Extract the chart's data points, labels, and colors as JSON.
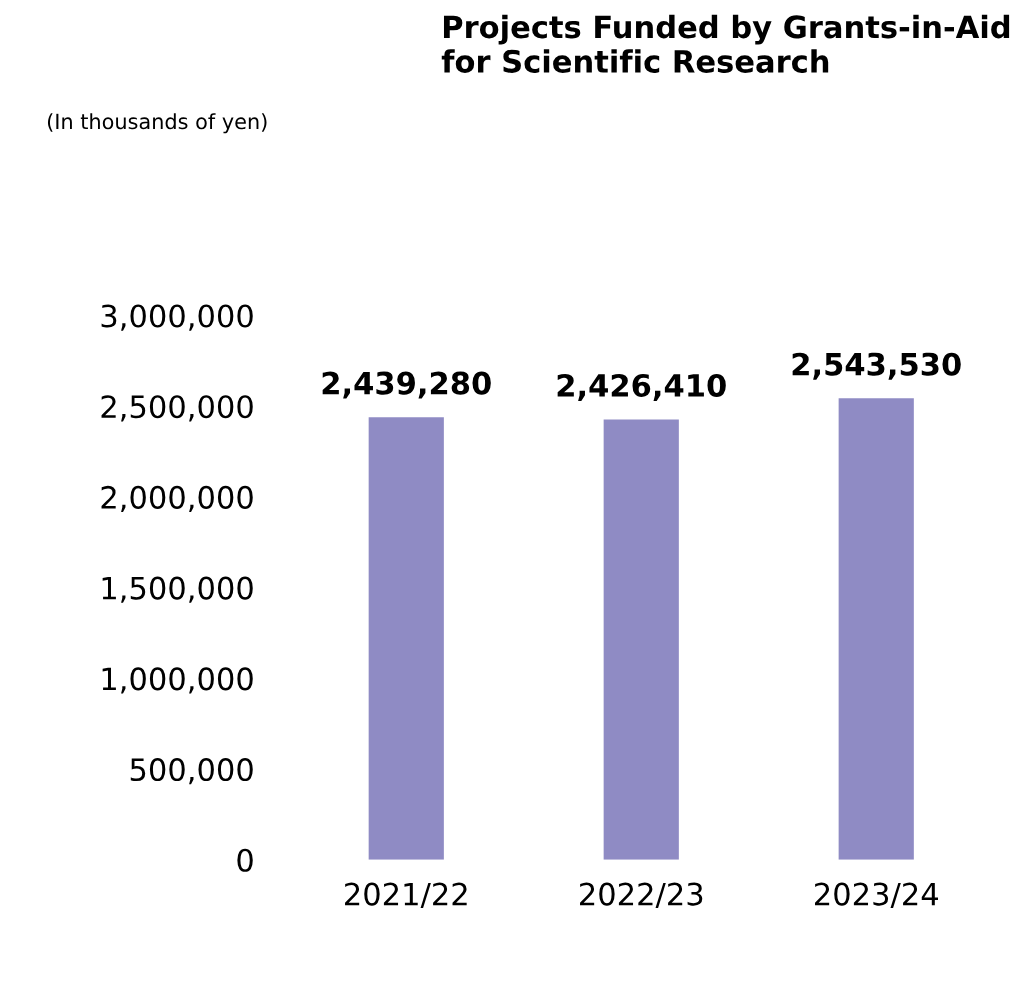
{
  "chart_data": {
    "type": "bar",
    "title": "Projects Funded by Grants-in-Aid\nfor Scientific Research",
    "annotations": [
      "(In thousands of yen)"
    ],
    "categories": [
      "2021/22",
      "2022/23",
      "2023/24"
    ],
    "values": [
      2439280,
      2426410,
      2543530
    ],
    "color": "#8f8bc4",
    "ylim": [
      0,
      3000000
    ],
    "yticks": [
      {
        "value": 0,
        "label": "0"
      },
      {
        "value": 500000,
        "label": "500,000"
      },
      {
        "value": 1000000,
        "label": "1,000,000"
      },
      {
        "value": 1500000,
        "label": "1,500,000"
      },
      {
        "value": 2000000,
        "label": "2,000,000"
      },
      {
        "value": 2500000,
        "label": "2,500,000"
      },
      {
        "value": 3000000,
        "label": "3,000,000"
      }
    ],
    "value_labels": [
      "2,439,280",
      "2,426,410",
      "2,543,530"
    ],
    "grid": false,
    "legend": false
  }
}
